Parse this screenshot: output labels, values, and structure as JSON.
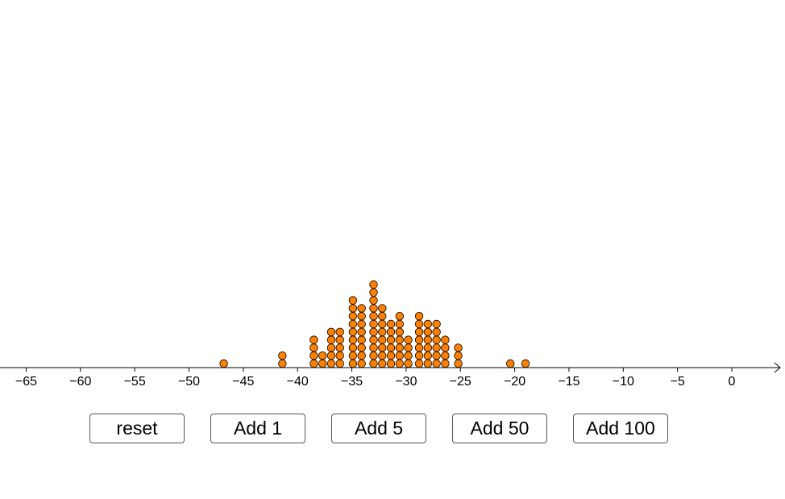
{
  "chart_data": {
    "type": "dot_plot",
    "xlim": [
      -67,
      4.5
    ],
    "ticks": [
      -65,
      -60,
      -55,
      -50,
      -45,
      -40,
      -35,
      -30,
      -25,
      -20,
      -15,
      -10,
      -5,
      0
    ],
    "tick_labels": [
      "−65",
      "−60",
      "−55",
      "−50",
      "−45",
      "−40",
      "−35",
      "−30",
      "−25",
      "−20",
      "−15",
      "−10",
      "−5",
      "0"
    ],
    "dot_color": "#ff8000",
    "dot_stroke": "#000000",
    "columns": [
      {
        "x": -46.8,
        "count": 1
      },
      {
        "x": -41.4,
        "count": 2
      },
      {
        "x": -38.5,
        "count": 4
      },
      {
        "x": -37.7,
        "count": 2
      },
      {
        "x": -36.9,
        "count": 5
      },
      {
        "x": -36.1,
        "count": 5
      },
      {
        "x": -34.9,
        "count": 9
      },
      {
        "x": -34.1,
        "count": 8
      },
      {
        "x": -33.0,
        "count": 11
      },
      {
        "x": -32.2,
        "count": 8
      },
      {
        "x": -31.4,
        "count": 6
      },
      {
        "x": -30.6,
        "count": 7
      },
      {
        "x": -29.8,
        "count": 4
      },
      {
        "x": -28.8,
        "count": 7
      },
      {
        "x": -28.0,
        "count": 6
      },
      {
        "x": -27.2,
        "count": 6
      },
      {
        "x": -26.4,
        "count": 4
      },
      {
        "x": -25.2,
        "count": 3
      },
      {
        "x": -20.4,
        "count": 1
      },
      {
        "x": -19.0,
        "count": 1
      }
    ]
  },
  "buttons": {
    "reset": "reset",
    "add1": "Add 1",
    "add5": "Add 5",
    "add50": "Add 50",
    "add100": "Add 100"
  }
}
